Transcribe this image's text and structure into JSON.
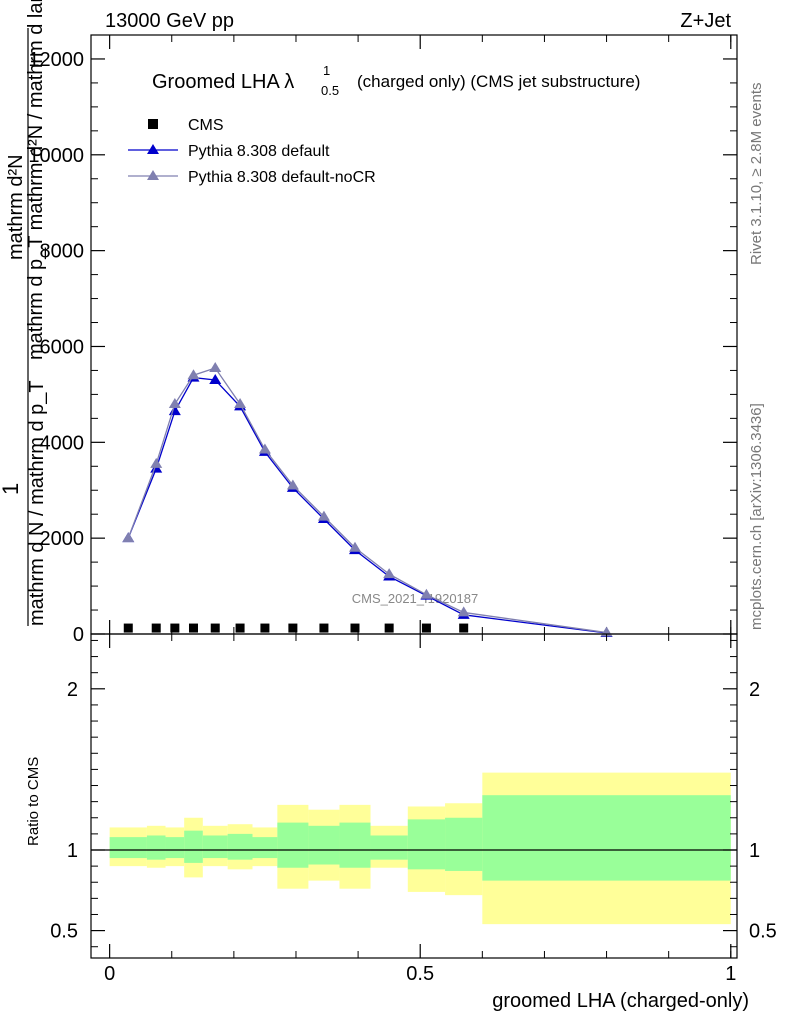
{
  "header": {
    "left": "13000 GeV pp",
    "right": "Z+Jet"
  },
  "side_labels": {
    "rivet": "Rivet 3.1.10, ≥ 2.8M events",
    "mcplots": "mcplots.cern.ch [arXiv:1306.3436]"
  },
  "chart_data": [
    {
      "type": "line",
      "title": "Groomed LHA λ",
      "title_sup": "1",
      "title_sub": "0.5",
      "title_suffix": "(charged only) (CMS jet substructure)",
      "watermark": "CMS_2021_I1920187",
      "ylabel_top": "mathrm d²N",
      "ylabel_mid": "mathrm d p_T mathrm d lambda",
      "ylabel_bottom": "1",
      "ylabel_denominator": "mathrm d N / mathrm d p_T",
      "ylabel_extra": "mathrm d p_T mathrm d²N / mathrm d lambda",
      "xlim": [
        -0.03,
        1.01
      ],
      "ylim": [
        0,
        12500
      ],
      "yticks": [
        0,
        2000,
        4000,
        6000,
        8000,
        10000,
        12000
      ],
      "ytick_labels": [
        "0",
        "2000",
        "4000",
        "6000",
        "8000",
        "10000",
        "12000"
      ],
      "legend_position": "top-left",
      "series": [
        {
          "name": "CMS",
          "marker": "square",
          "color": "#000000",
          "x": [
            0.03,
            0.075,
            0.105,
            0.135,
            0.17,
            0.21,
            0.25,
            0.295,
            0.345,
            0.395,
            0.45,
            0.51,
            0.57
          ],
          "values": [
            30,
            30,
            30,
            30,
            30,
            30,
            30,
            30,
            30,
            30,
            30,
            30,
            30
          ]
        },
        {
          "name": "Pythia 8.308 default",
          "marker": "triangle",
          "color": "#0000cc",
          "x": [
            0.03,
            0.075,
            0.105,
            0.135,
            0.17,
            0.21,
            0.25,
            0.295,
            0.345,
            0.395,
            0.45,
            0.51,
            0.57,
            0.8
          ],
          "values": [
            2000,
            3450,
            4650,
            5350,
            5300,
            4750,
            3800,
            3050,
            2400,
            1750,
            1200,
            800,
            400,
            20
          ]
        },
        {
          "name": "Pythia 8.308 default-noCR",
          "marker": "triangle",
          "color": "#8080b0",
          "x": [
            0.03,
            0.075,
            0.105,
            0.135,
            0.17,
            0.21,
            0.25,
            0.295,
            0.345,
            0.395,
            0.45,
            0.51,
            0.57,
            0.8
          ],
          "values": [
            2000,
            3550,
            4800,
            5400,
            5550,
            4800,
            3850,
            3100,
            2450,
            1800,
            1250,
            820,
            450,
            30
          ]
        }
      ]
    },
    {
      "type": "area",
      "ylabel": "Ratio to CMS",
      "xlabel": "groomed LHA (charged-only)",
      "xlim": [
        -0.03,
        1.01
      ],
      "ylim": [
        0.33,
        2.34
      ],
      "yticks": [
        0.5,
        1,
        2
      ],
      "ytick_labels": [
        "0.5",
        "1",
        "2"
      ],
      "xticks": [
        0,
        0.5,
        1
      ],
      "xtick_labels": [
        "0",
        "0.5",
        "1"
      ],
      "bin_edges": [
        0.0,
        0.06,
        0.09,
        0.12,
        0.15,
        0.19,
        0.23,
        0.27,
        0.32,
        0.37,
        0.42,
        0.48,
        0.54,
        0.6,
        1.0
      ],
      "bands": [
        {
          "name": "stat+syst",
          "color": "#ffff99",
          "lower": [
            0.9,
            0.89,
            0.9,
            0.83,
            0.9,
            0.88,
            0.9,
            0.76,
            0.81,
            0.76,
            0.89,
            0.74,
            0.72,
            0.54
          ],
          "upper": [
            1.14,
            1.15,
            1.14,
            1.2,
            1.15,
            1.16,
            1.14,
            1.28,
            1.25,
            1.28,
            1.15,
            1.27,
            1.29,
            1.48
          ]
        },
        {
          "name": "stat",
          "color": "#99ff99",
          "lower": [
            0.95,
            0.94,
            0.95,
            0.92,
            0.95,
            0.94,
            0.95,
            0.89,
            0.91,
            0.89,
            0.94,
            0.88,
            0.87,
            0.81
          ],
          "upper": [
            1.08,
            1.09,
            1.08,
            1.12,
            1.09,
            1.1,
            1.08,
            1.17,
            1.15,
            1.17,
            1.09,
            1.19,
            1.2,
            1.34
          ]
        }
      ],
      "reference_line": 1
    }
  ]
}
